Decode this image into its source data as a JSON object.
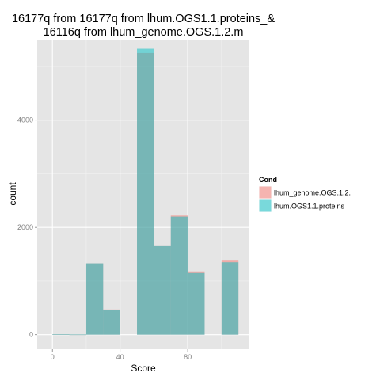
{
  "chart_data": {
    "type": "bar",
    "title_lines": [
      "16177q from  16177q from  lhum.OGS1.1.proteins_&",
      "16116q from lhum_genome.OGS.1.2.m"
    ],
    "xlabel": "Score",
    "ylabel": "count",
    "xlim": [
      -9,
      116
    ],
    "ylim": [
      -270,
      5500
    ],
    "x_ticks": [
      0,
      40,
      80
    ],
    "y_ticks": [
      0,
      2000,
      4000
    ],
    "bin_edges": [
      0,
      10,
      20,
      30,
      40,
      50,
      60,
      70,
      80,
      90,
      100,
      110
    ],
    "grid": true,
    "legend": {
      "title": "Cond",
      "position": "right"
    },
    "series": [
      {
        "name": "lhum_genome.OGS.1.2.",
        "color": "#F8766D",
        "values": [
          10,
          5,
          1330,
          470,
          0,
          5250,
          1650,
          2220,
          1180,
          0,
          1380
        ]
      },
      {
        "name": "lhum.OGS1.1.proteins",
        "color": "#00BFC4",
        "values": [
          10,
          5,
          1330,
          460,
          0,
          5330,
          1650,
          2200,
          1150,
          0,
          1350
        ]
      }
    ]
  }
}
